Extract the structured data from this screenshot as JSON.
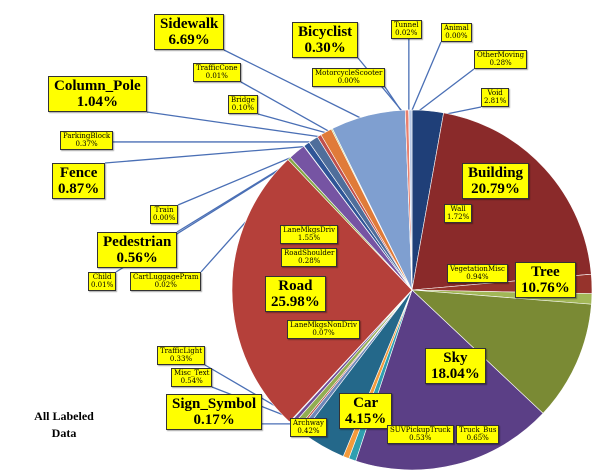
{
  "chart_data": {
    "type": "pie",
    "caption": [
      "All Labeled",
      "Data"
    ],
    "slices": [
      {
        "name": "Void",
        "value": 2.81,
        "color": "#1f3f78",
        "label": "2.81%"
      },
      {
        "name": "Building",
        "value": 20.79,
        "color": "#8a2a2a",
        "label": "20.79%"
      },
      {
        "name": "Wall",
        "value": 1.72,
        "color": "#96332c",
        "label": "1.72%"
      },
      {
        "name": "VegetationMisc",
        "value": 0.94,
        "color": "#a2b757",
        "label": "0.94%"
      },
      {
        "name": "Tree",
        "value": 10.76,
        "color": "#7a8a34",
        "label": "10.76%"
      },
      {
        "name": "Sky",
        "value": 18.04,
        "color": "#5b3f86",
        "label": "18.04%"
      },
      {
        "name": "Truck_Bus",
        "value": 0.65,
        "color": "#2f9fb0",
        "label": "0.65%"
      },
      {
        "name": "SUVPickupTruck",
        "value": 0.53,
        "color": "#f39b3c",
        "label": "0.53%"
      },
      {
        "name": "Car",
        "value": 4.15,
        "color": "#24688a",
        "label": "4.15%"
      },
      {
        "name": "Archway",
        "value": 0.42,
        "color": "#6d86b8",
        "label": "0.42%"
      },
      {
        "name": "Sign_Symbol",
        "value": 0.17,
        "color": "#b3413a",
        "label": "0.17%"
      },
      {
        "name": "Misc_Text",
        "value": 0.54,
        "color": "#92ad52",
        "label": "0.54%"
      },
      {
        "name": "TrafficLight",
        "value": 0.33,
        "color": "#6f4d98",
        "label": "0.33%"
      },
      {
        "name": "LaneMkgsNonDriv",
        "value": 0.07,
        "color": "#4db3c7",
        "label": "0.07%"
      },
      {
        "name": "Road",
        "value": 25.98,
        "color": "#b5403a",
        "label": "25.98%"
      },
      {
        "name": "RoadShoulder",
        "value": 0.28,
        "color": "#86a844",
        "label": "0.28%"
      },
      {
        "name": "LaneMkgsDriv",
        "value": 1.55,
        "color": "#7654a3",
        "label": "1.55%"
      },
      {
        "name": "CartLuggagePram",
        "value": 0.02,
        "color": "#3aa1b6",
        "label": "0.02%"
      },
      {
        "name": "Child",
        "value": 0.01,
        "color": "#f08a2c",
        "label": "0.01%"
      },
      {
        "name": "Pedestrian",
        "value": 0.56,
        "color": "#2f5597",
        "label": "0.56%"
      },
      {
        "name": "Train",
        "value": 0.0,
        "color": "#c0504d",
        "label": "0.00%"
      },
      {
        "name": "Fence",
        "value": 0.87,
        "color": "#4f6e9b",
        "label": "0.87%"
      },
      {
        "name": "ParkingBlock",
        "value": 0.37,
        "color": "#c0504d",
        "label": "0.37%"
      },
      {
        "name": "Column_Pole",
        "value": 1.04,
        "color": "#e07b39",
        "label": "1.04%"
      },
      {
        "name": "Bridge",
        "value": 0.1,
        "color": "#9bbb59",
        "label": "0.10%"
      },
      {
        "name": "TrafficCone",
        "value": 0.01,
        "color": "#8064a2",
        "label": "0.01%"
      },
      {
        "name": "Sidewalk",
        "value": 6.69,
        "color": "#7f9fd0",
        "label": "6.69%"
      },
      {
        "name": "MotorcycleScooter",
        "value": 0.0,
        "color": "#f79646",
        "label": "0.00%"
      },
      {
        "name": "Bicyclist",
        "value": 0.3,
        "color": "#e8806f",
        "label": "0.30%"
      },
      {
        "name": "Tunnel",
        "value": 0.02,
        "color": "#d9d9d9",
        "label": "0.02%"
      },
      {
        "name": "Animal",
        "value": 0.0,
        "color": "#f2b6b2",
        "label": "0.00%"
      },
      {
        "name": "OtherMoving",
        "value": 0.28,
        "color": "#b7c8e6",
        "label": "0.28%"
      }
    ]
  }
}
